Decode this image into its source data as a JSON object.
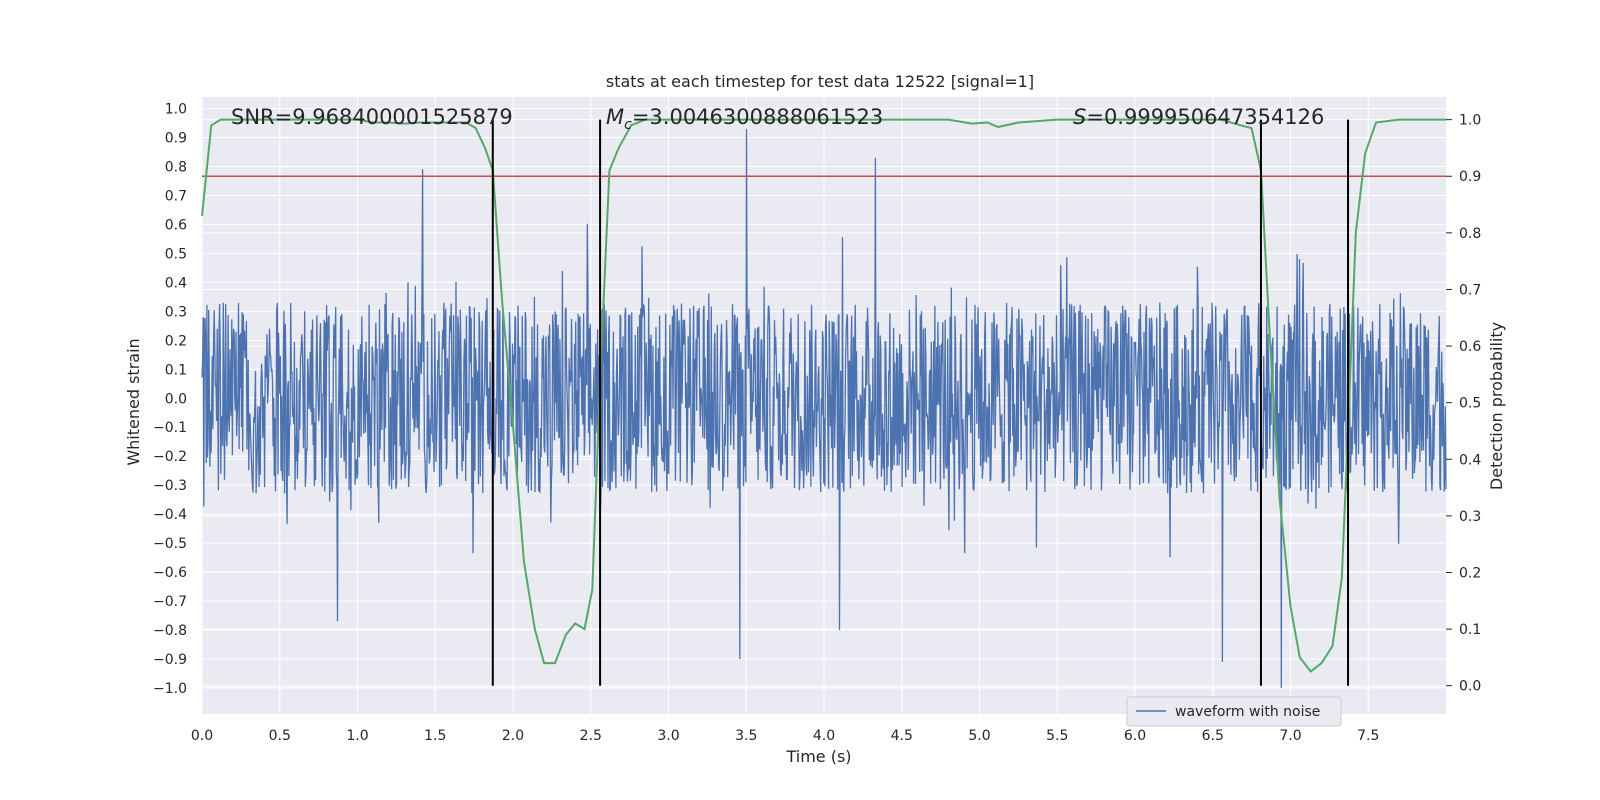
{
  "chart_data": {
    "type": "line",
    "title": "stats at each timestep for test data 12522 [signal=1]",
    "xlabel": "Time (s)",
    "ylabel": "Whitened strain",
    "ylabel_right": "Detection probability",
    "xlim": [
      0.0,
      8.0
    ],
    "ylim": [
      -1.09,
      1.04
    ],
    "ylim_right": [
      -0.05,
      1.04
    ],
    "x_ticks": [
      0.0,
      0.5,
      1.0,
      1.5,
      2.0,
      2.5,
      3.0,
      3.5,
      4.0,
      4.5,
      5.0,
      5.5,
      6.0,
      6.5,
      7.0,
      7.5
    ],
    "x_tick_labels": [
      "0.0",
      "0.5",
      "1.0",
      "1.5",
      "2.0",
      "2.5",
      "3.0",
      "3.5",
      "4.0",
      "4.5",
      "5.0",
      "5.5",
      "6.0",
      "6.5",
      "7.0",
      "7.5"
    ],
    "y_ticks": [
      1.0,
      0.9,
      0.8,
      0.7,
      0.6,
      0.5,
      0.4,
      0.3,
      0.2,
      0.1,
      0.0,
      -0.1,
      -0.2,
      -0.3,
      -0.4,
      -0.5,
      -0.6,
      -0.7,
      -0.8,
      -0.9,
      -1.0
    ],
    "y_tick_labels": [
      "1.0",
      "0.9",
      "0.8",
      "0.7",
      "0.6",
      "0.5",
      "0.4",
      "0.3",
      "0.2",
      "0.1",
      "0.0",
      "−0.1",
      "−0.2",
      "−0.3",
      "−0.4",
      "−0.5",
      "−0.6",
      "−0.7",
      "−0.8",
      "−0.9",
      "−1.0"
    ],
    "y_right_ticks": [
      1.0,
      0.9,
      0.8,
      0.7,
      0.6,
      0.5,
      0.4,
      0.3,
      0.2,
      0.1,
      0.0
    ],
    "y_right_tick_labels": [
      "1.0",
      "0.9",
      "0.8",
      "0.7",
      "0.6",
      "0.5",
      "0.4",
      "0.3",
      "0.2",
      "0.1",
      "0.0"
    ],
    "threshold": 0.9,
    "colors": {
      "background": "#eaeaf2",
      "grid": "#ffffff",
      "waveform": "#4c72b0",
      "probability": "#55a868",
      "threshold": "#c44e52",
      "vlines": "#000000"
    },
    "vertical_lines": [
      1.87,
      2.56,
      6.81,
      7.37
    ],
    "annotations": {
      "snr_prefix": "SNR=",
      "snr_value": "9.968400001525879",
      "mc_symbol": "M",
      "mc_subscript": "c",
      "mc_value": "=3.0046300888061523",
      "s_symbol": "S",
      "s_value": "=0.999950647354126"
    },
    "legend": {
      "label": "waveform with noise",
      "location": "lower-right"
    },
    "waveform": {
      "name": "waveform with noise",
      "sample_rate_hz": 256,
      "duration_s": 8.0,
      "typical_envelope": [
        -0.33,
        0.33
      ],
      "spikes": [
        {
          "x": 1.42,
          "y": 0.79
        },
        {
          "x": 3.5,
          "y": 0.93
        },
        {
          "x": 4.33,
          "y": 0.83
        },
        {
          "x": 0.87,
          "y": -0.77
        },
        {
          "x": 3.46,
          "y": -0.9
        },
        {
          "x": 4.1,
          "y": -0.8
        },
        {
          "x": 6.56,
          "y": -0.91
        },
        {
          "x": 6.94,
          "y": -1.0
        }
      ]
    },
    "series": [
      {
        "name": "detection probability",
        "x": [
          0.0,
          0.06,
          0.12,
          0.2,
          0.4,
          0.6,
          0.8,
          1.0,
          1.1,
          1.2,
          1.3,
          1.4,
          1.5,
          1.6,
          1.7,
          1.76,
          1.82,
          1.87,
          1.93,
          2.0,
          2.07,
          2.14,
          2.2,
          2.27,
          2.34,
          2.4,
          2.46,
          2.51,
          2.56,
          2.62,
          2.68,
          2.76,
          2.85,
          3.0,
          3.5,
          4.0,
          4.5,
          4.8,
          4.95,
          5.05,
          5.12,
          5.25,
          5.5,
          6.0,
          6.3,
          6.55,
          6.68,
          6.75,
          6.81,
          6.87,
          6.93,
          7.0,
          7.06,
          7.13,
          7.2,
          7.27,
          7.33,
          7.37,
          7.42,
          7.48,
          7.55,
          7.7,
          8.0
        ],
        "values": [
          0.83,
          0.99,
          1.0,
          1.0,
          1.0,
          1.0,
          1.0,
          1.0,
          0.995,
          0.995,
          0.993,
          0.995,
          0.995,
          0.995,
          0.995,
          0.985,
          0.95,
          0.91,
          0.68,
          0.46,
          0.22,
          0.1,
          0.04,
          0.04,
          0.09,
          0.11,
          0.1,
          0.17,
          0.54,
          0.91,
          0.95,
          0.99,
          1.0,
          1.0,
          1.0,
          1.0,
          1.0,
          1.0,
          0.993,
          0.995,
          0.987,
          0.995,
          1.0,
          1.0,
          1.0,
          1.0,
          0.99,
          0.985,
          0.91,
          0.6,
          0.33,
          0.14,
          0.05,
          0.025,
          0.04,
          0.07,
          0.19,
          0.45,
          0.8,
          0.94,
          0.995,
          1.0,
          1.0
        ]
      }
    ]
  }
}
